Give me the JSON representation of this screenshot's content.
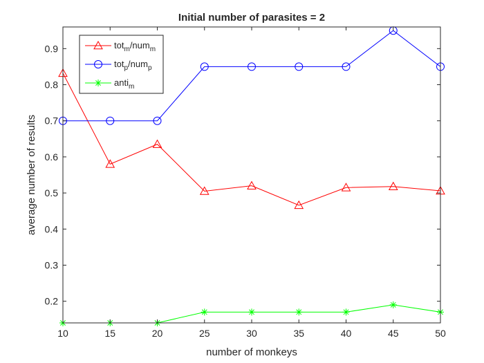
{
  "chart_data": {
    "type": "line",
    "title": "Initial number of parasites = 2",
    "xlabel": "number of monkeys",
    "ylabel": "average number of results",
    "x": [
      10,
      15,
      20,
      25,
      30,
      35,
      40,
      45,
      50
    ],
    "xlim": [
      10,
      50
    ],
    "ylim": [
      0.14,
      0.96
    ],
    "xticks": [
      "10",
      "15",
      "20",
      "25",
      "30",
      "35",
      "40",
      "45",
      "50"
    ],
    "yticks": [
      "0.2",
      "0.3",
      "0.4",
      "0.5",
      "0.6",
      "0.7",
      "0.8",
      "0.9"
    ],
    "grid": false,
    "legend_position": "top-left",
    "series": [
      {
        "name": "tot_m/num_m",
        "label_base1": "tot",
        "label_sub1": "m",
        "label_base2": "/num",
        "label_sub2": "m",
        "color": "#ff0000",
        "marker": "triangle",
        "values": [
          0.832,
          0.58,
          0.635,
          0.505,
          0.52,
          0.466,
          0.515,
          0.518,
          0.506
        ]
      },
      {
        "name": "tot_p/num_p",
        "label_base1": "tot",
        "label_sub1": "p",
        "label_base2": "/num",
        "label_sub2": "p",
        "color": "#0000ff",
        "marker": "circle",
        "values": [
          0.7,
          0.7,
          0.7,
          0.85,
          0.85,
          0.85,
          0.85,
          0.95,
          0.85
        ]
      },
      {
        "name": "anti_m",
        "label_base1": "anti",
        "label_sub1": "m",
        "label_base2": "",
        "label_sub2": "",
        "color": "#00ff00",
        "marker": "asterisk",
        "values": [
          0.14,
          0.14,
          0.14,
          0.17,
          0.17,
          0.17,
          0.17,
          0.19,
          0.17
        ]
      }
    ]
  }
}
